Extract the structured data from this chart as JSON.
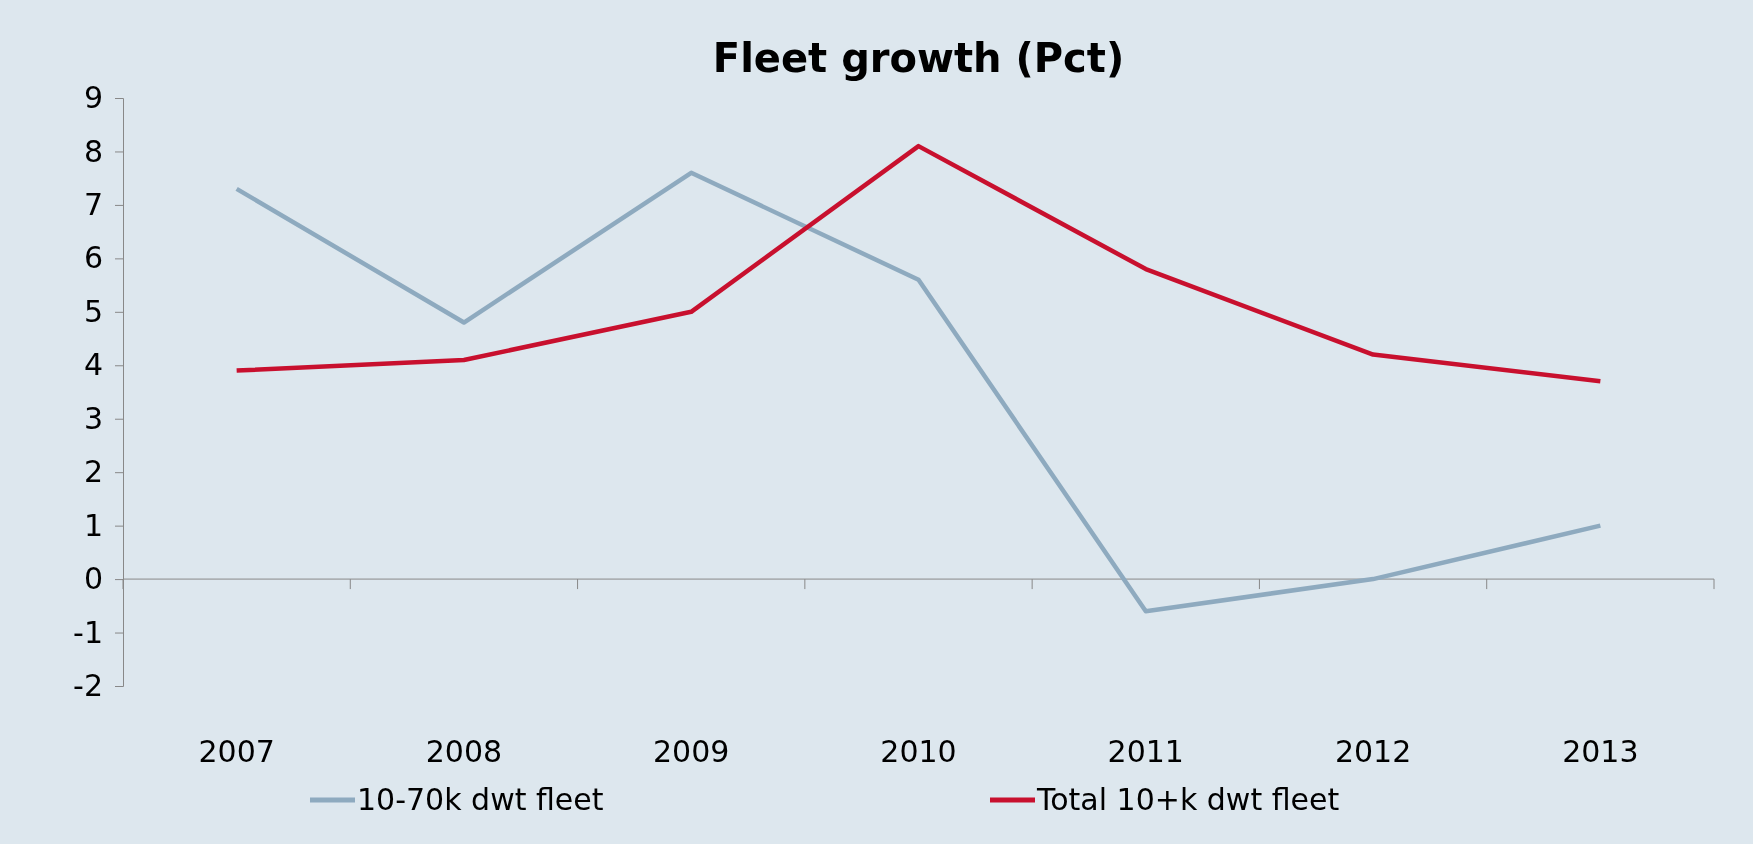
{
  "chart_data": {
    "type": "line",
    "title": "Fleet growth (Pct)",
    "categories": [
      "2007",
      "2008",
      "2009",
      "2010",
      "2011",
      "2012",
      "2013"
    ],
    "series": [
      {
        "name": "10-70k dwt fleet",
        "color": "#8eaabf",
        "values": [
          7.3,
          4.8,
          7.6,
          5.6,
          -0.6,
          0,
          1.0
        ]
      },
      {
        "name": "Total 10+k dwt fleet",
        "color": "#c8102e",
        "values": [
          3.9,
          4.1,
          5.0,
          8.1,
          5.8,
          4.2,
          3.7
        ]
      }
    ],
    "ylim": [
      -2,
      9
    ],
    "yticks": [
      -2,
      -1,
      0,
      1,
      2,
      3,
      4,
      5,
      6,
      7,
      8,
      9
    ],
    "legend": "bottom",
    "marker": "none",
    "line_style": "solid"
  }
}
